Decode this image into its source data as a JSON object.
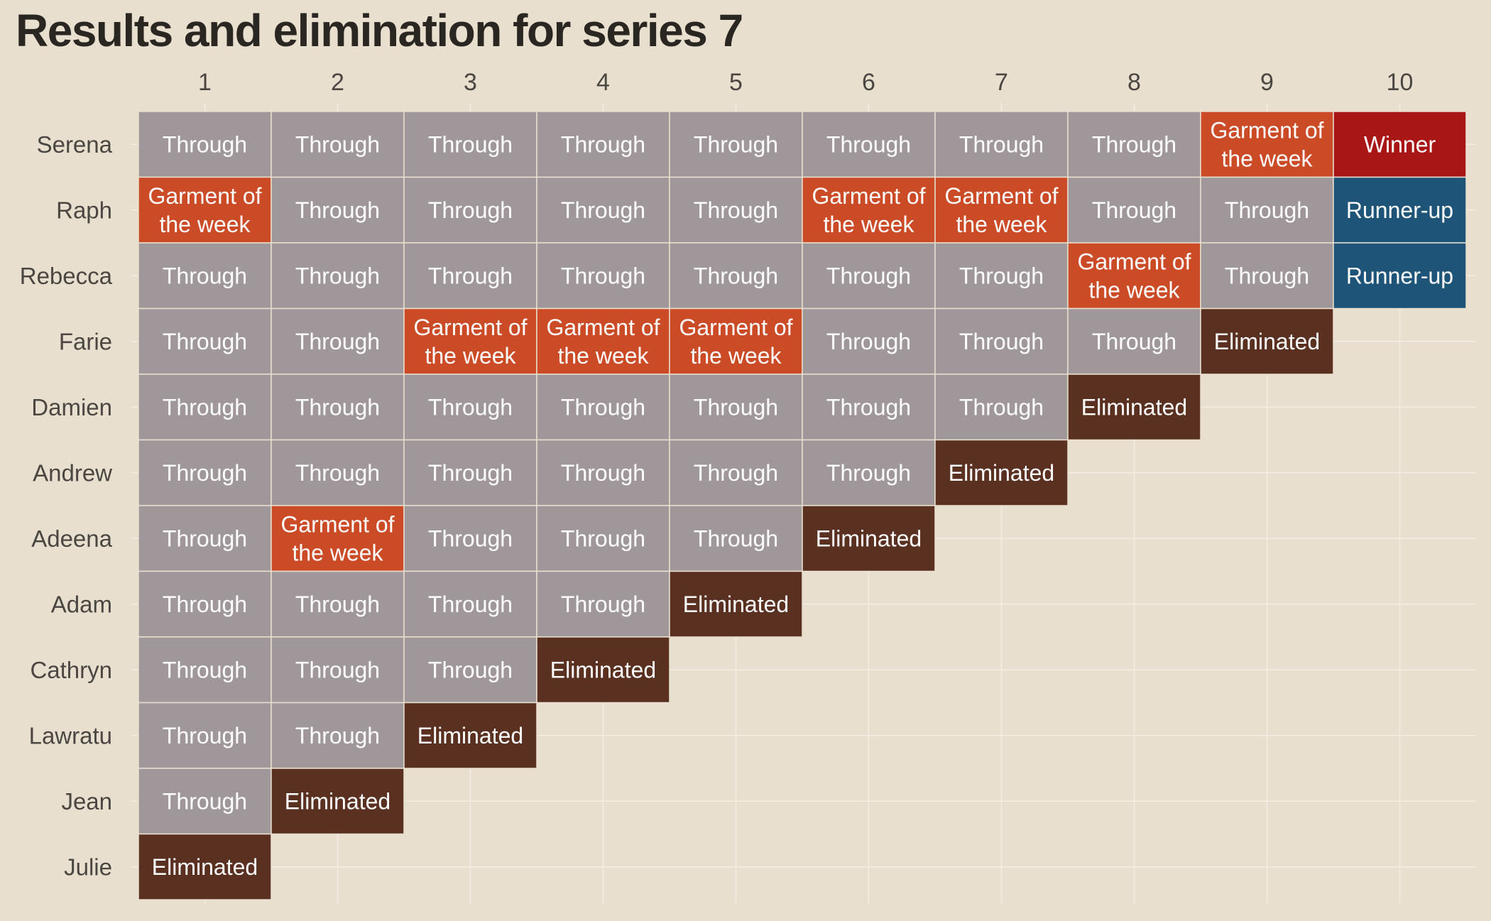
{
  "chart_data": {
    "type": "table",
    "title": "Results and elimination for series 7",
    "columns": [
      "1",
      "2",
      "3",
      "4",
      "5",
      "6",
      "7",
      "8",
      "9",
      "10"
    ],
    "rows": [
      "Serena",
      "Raph",
      "Rebecca",
      "Farie",
      "Damien",
      "Andrew",
      "Adeena",
      "Adam",
      "Cathryn",
      "Lawratu",
      "Jean",
      "Julie"
    ],
    "grid": true,
    "categories": {
      "Through": "#a0979a",
      "Garment of the week": "#cb4b27",
      "Eliminated": "#5a3021",
      "Winner": "#a81616",
      "Runner-up": "#1f5479"
    },
    "results": [
      [
        "Through",
        "Through",
        "Through",
        "Through",
        "Through",
        "Through",
        "Through",
        "Through",
        "Garment of the week",
        "Winner"
      ],
      [
        "Garment of the week",
        "Through",
        "Through",
        "Through",
        "Through",
        "Garment of the week",
        "Garment of the week",
        "Through",
        "Through",
        "Runner-up"
      ],
      [
        "Through",
        "Through",
        "Through",
        "Through",
        "Through",
        "Through",
        "Through",
        "Garment of the week",
        "Through",
        "Runner-up"
      ],
      [
        "Through",
        "Through",
        "Garment of the week",
        "Garment of the week",
        "Garment of the week",
        "Through",
        "Through",
        "Through",
        "Eliminated"
      ],
      [
        "Through",
        "Through",
        "Through",
        "Through",
        "Through",
        "Through",
        "Through",
        "Eliminated"
      ],
      [
        "Through",
        "Through",
        "Through",
        "Through",
        "Through",
        "Through",
        "Eliminated"
      ],
      [
        "Through",
        "Garment of the week",
        "Through",
        "Through",
        "Through",
        "Eliminated"
      ],
      [
        "Through",
        "Through",
        "Through",
        "Through",
        "Eliminated"
      ],
      [
        "Through",
        "Through",
        "Through",
        "Eliminated"
      ],
      [
        "Through",
        "Through",
        "Eliminated"
      ],
      [
        "Through",
        "Eliminated"
      ],
      [
        "Eliminated"
      ]
    ]
  }
}
